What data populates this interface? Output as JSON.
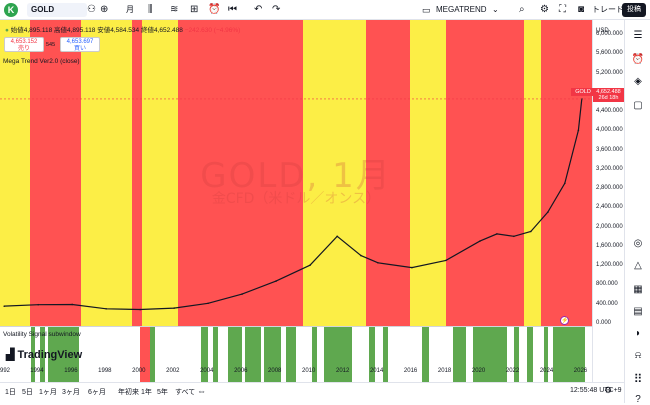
{
  "toolbar": {
    "avatar_letter": "K",
    "symbol": "GOLD",
    "interval": "月",
    "layout_name": "MEGATREND",
    "trade_label": "トレード",
    "publish_label": "投稿"
  },
  "legend": {
    "ohlc_text": "始値4,895.118  高値4,895.118  安値4,584.534  終値4,652.488",
    "change_text": "−242.630 (−4.96%)",
    "sell_price": "4,653.152",
    "sell_label": "売り",
    "spread": "545",
    "buy_price": "4,653.697",
    "buy_label": "買い",
    "indicator_name": "Mega Trend Ver2.0 (close)",
    "subwindow_name": "Volatility Signal subwindow"
  },
  "watermark": {
    "title": "GOLD, 1月",
    "subtitle": "金CFD（米ドル／オンス）"
  },
  "price_axis": {
    "currency": "USD",
    "labels": [
      "6,000.000",
      "5,600.000",
      "5,200.000",
      "4,800.000",
      "4,400.000",
      "4,000.000",
      "3,600.000",
      "3,200.000",
      "2,800.000",
      "2,400.000",
      "2,000.000",
      "1,600.000",
      "1,200.000",
      "800.000",
      "400.000",
      "0.000"
    ],
    "tag_symbol": "GOLD",
    "tag_price": "4,652.488",
    "tag_time": "26d 18h"
  },
  "time_axis": {
    "labels": [
      "992",
      "1994",
      "1996",
      "1998",
      "2000",
      "2002",
      "2004",
      "2006",
      "2008",
      "2010",
      "2012",
      "2014",
      "2016",
      "2018",
      "2020",
      "2022",
      "2024",
      "2026"
    ]
  },
  "bottom": {
    "ranges": [
      "1日",
      "5日",
      "1ヶ月",
      "3ヶ月",
      "6ヶ月",
      "年初来",
      "1年",
      "5年",
      "すべて"
    ],
    "clock": "12:55:48 UTC+9"
  },
  "branding": {
    "logo_text": "TradingView"
  },
  "colors": {
    "bull_band": "#fcee46",
    "bear_band": "#ff5252",
    "signal_green": "#5fa84f",
    "price_line": "#131722",
    "price_tag_bg": "#f23645"
  },
  "chart_data": {
    "type": "line",
    "title": "GOLD, 1月",
    "x": [
      1992,
      1994,
      1996,
      1998,
      2000,
      2002,
      2004,
      2006,
      2008,
      2010,
      2011.6,
      2013,
      2014,
      2016,
      2018,
      2020,
      2021,
      2022,
      2023,
      2024,
      2025,
      2025.8,
      2026
    ],
    "series": [
      {
        "name": "GOLD",
        "values": [
          350,
          380,
          385,
          295,
          280,
          310,
          410,
          600,
          870,
          1200,
          1800,
          1400,
          1250,
          1150,
          1300,
          1700,
          1850,
          1800,
          1900,
          2300,
          2900,
          4000,
          4652
        ]
      }
    ],
    "ylim": [
      0,
      6000
    ]
  }
}
